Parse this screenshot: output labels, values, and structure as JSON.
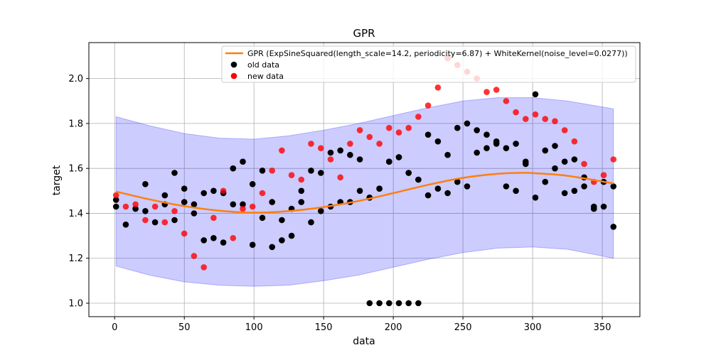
{
  "chart_data": {
    "type": "scatter",
    "title": "GPR",
    "xlabel": "data",
    "ylabel": "target",
    "xlim": [
      -18.5,
      377
    ],
    "ylim": [
      0.94,
      2.16
    ],
    "xticks": [
      0,
      50,
      100,
      150,
      200,
      250,
      300,
      350
    ],
    "yticks": [
      1.0,
      1.2,
      1.4,
      1.6,
      1.8,
      2.0
    ],
    "grid": true,
    "legend_position": "upper right",
    "legend": [
      {
        "label": "GPR (ExpSineSquared(length_scale=14.2, periodicity=6.87) + WhiteKernel(noise_level=0.0277))",
        "color": "#ff7f0e",
        "kind": "line"
      },
      {
        "label": "old data",
        "color": "#000000",
        "kind": "point"
      },
      {
        "label": "new data",
        "color": "#ff0000",
        "kind": "point"
      }
    ],
    "band": {
      "color": "#0000ff",
      "opacity": 0.2,
      "x": [
        1,
        25,
        50,
        75,
        100,
        125,
        150,
        175,
        200,
        225,
        250,
        275,
        300,
        325,
        358
      ],
      "lower": [
        1.165,
        1.125,
        1.095,
        1.08,
        1.075,
        1.08,
        1.1,
        1.125,
        1.16,
        1.195,
        1.225,
        1.245,
        1.25,
        1.24,
        1.2
      ],
      "upper": [
        1.83,
        1.79,
        1.755,
        1.735,
        1.73,
        1.745,
        1.77,
        1.8,
        1.835,
        1.87,
        1.9,
        1.915,
        1.915,
        1.9,
        1.865
      ]
    },
    "gpr_line": {
      "color": "#ff7f0e",
      "x": [
        1,
        25,
        50,
        75,
        100,
        125,
        150,
        175,
        200,
        225,
        250,
        275,
        290,
        300,
        325,
        358
      ],
      "y": [
        1.497,
        1.462,
        1.432,
        1.412,
        1.403,
        1.41,
        1.428,
        1.455,
        1.49,
        1.527,
        1.558,
        1.576,
        1.58,
        1.579,
        1.567,
        1.533
      ]
    },
    "series": [
      {
        "name": "old data",
        "color": "#000000",
        "x": [
          1,
          1,
          8,
          15,
          22,
          22,
          29,
          36,
          36,
          43,
          43,
          50,
          50,
          57,
          57,
          64,
          64,
          71,
          71,
          78,
          78,
          85,
          85,
          92,
          92,
          99,
          99,
          106,
          106,
          113,
          113,
          120,
          120,
          127,
          127,
          134,
          134,
          141,
          141,
          148,
          148,
          155,
          155,
          162,
          162,
          169,
          169,
          176,
          176,
          183,
          183,
          190,
          190,
          197,
          197,
          204,
          204,
          211,
          211,
          218,
          218,
          225,
          225,
          232,
          232,
          239,
          239,
          246,
          246,
          253,
          253,
          260,
          260,
          267,
          267,
          274,
          274,
          281,
          281,
          288,
          288,
          295,
          295,
          302,
          302,
          309,
          309,
          316,
          316,
          323,
          323,
          330,
          330,
          337,
          337,
          344,
          344,
          351,
          351,
          358,
          358,
          183,
          190,
          197,
          204,
          211,
          218
        ],
        "y": [
          1.46,
          1.43,
          1.35,
          1.42,
          1.53,
          1.41,
          1.36,
          1.48,
          1.44,
          1.58,
          1.37,
          1.51,
          1.45,
          1.44,
          1.4,
          1.49,
          1.28,
          1.5,
          1.29,
          1.49,
          1.27,
          1.6,
          1.44,
          1.63,
          1.44,
          1.53,
          1.26,
          1.59,
          1.38,
          1.45,
          1.25,
          1.37,
          1.28,
          1.42,
          1.3,
          1.5,
          1.45,
          1.59,
          1.36,
          1.58,
          1.41,
          1.67,
          1.43,
          1.68,
          1.45,
          1.66,
          1.45,
          1.64,
          1.5,
          1.47,
          1.47,
          1.51,
          1.51,
          1.63,
          1.63,
          1.65,
          1.65,
          1.58,
          1.58,
          1.55,
          1.55,
          1.75,
          1.48,
          1.72,
          1.51,
          1.66,
          1.49,
          1.78,
          1.54,
          1.8,
          1.52,
          1.77,
          1.67,
          1.75,
          1.69,
          1.72,
          1.71,
          1.69,
          1.52,
          1.71,
          1.5,
          1.62,
          1.63,
          1.93,
          1.47,
          1.68,
          1.54,
          1.7,
          1.6,
          1.63,
          1.49,
          1.64,
          1.5,
          1.56,
          1.52,
          1.43,
          1.42,
          1.54,
          1.43,
          1.52,
          1.34,
          1.0,
          1.0,
          1.0,
          1.0,
          1.0,
          1.0
        ]
      },
      {
        "name": "new data",
        "color": "#ff0000",
        "x": [
          1,
          8,
          15,
          22,
          29,
          36,
          43,
          50,
          57,
          64,
          71,
          78,
          85,
          92,
          99,
          106,
          113,
          120,
          127,
          134,
          141,
          148,
          155,
          162,
          169,
          176,
          183,
          190,
          197,
          204,
          211,
          218,
          225,
          232,
          239,
          246,
          253,
          260,
          267,
          274,
          281,
          288,
          295,
          302,
          309,
          316,
          323,
          330,
          337,
          344,
          351,
          358
        ],
        "y": [
          1.48,
          1.43,
          1.44,
          1.37,
          1.43,
          1.36,
          1.41,
          1.31,
          1.21,
          1.16,
          1.38,
          1.5,
          1.29,
          1.42,
          1.43,
          1.49,
          1.59,
          1.68,
          1.57,
          1.55,
          1.71,
          1.69,
          1.64,
          1.56,
          1.71,
          1.77,
          1.74,
          1.71,
          1.78,
          1.76,
          1.78,
          1.83,
          1.88,
          1.96,
          2.09,
          2.06,
          2.03,
          2.0,
          1.94,
          1.95,
          1.9,
          1.85,
          1.82,
          1.84,
          1.82,
          1.81,
          1.77,
          1.72,
          1.62,
          1.54,
          1.57,
          1.64
        ]
      }
    ]
  }
}
